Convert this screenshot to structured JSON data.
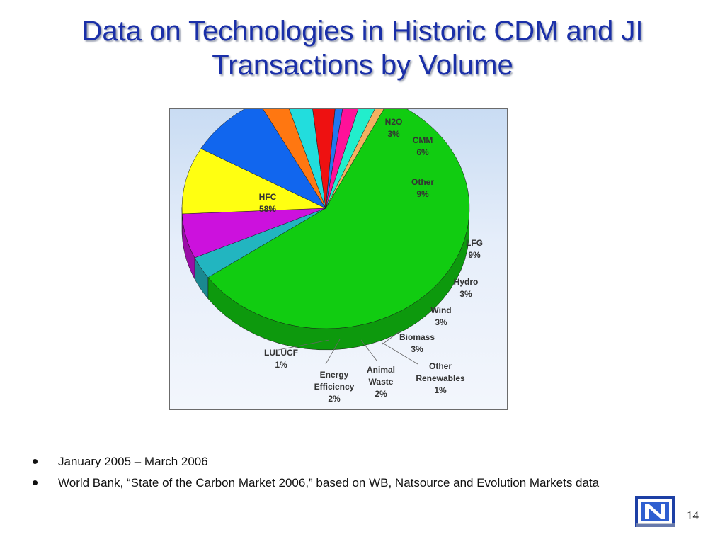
{
  "slide": {
    "title_line1": "Data on Technologies in Historic CDM and JI",
    "title_line2": "Transactions by Volume",
    "bullets": [
      "January 2005 – March 2006",
      "World Bank, “State of the Carbon Market 2006,” based on WB, Natsource and Evolution Markets data"
    ],
    "page_number": "14"
  },
  "chart_data": {
    "type": "pie",
    "title": "",
    "slices": [
      {
        "label": "HFC",
        "value": 58,
        "value_label": "58%",
        "color": "#11cc11"
      },
      {
        "label": "N2O",
        "value": 3,
        "value_label": "3%",
        "color": "#22b5c0"
      },
      {
        "label": "CMM",
        "value": 6,
        "value_label": "6%",
        "color": "#cc11dd"
      },
      {
        "label": "Other",
        "value": 9,
        "value_label": "9%",
        "color": "#ffff11"
      },
      {
        "label": "LFG",
        "value": 9,
        "value_label": "9%",
        "color": "#1166ee"
      },
      {
        "label": "Hydro",
        "value": 3,
        "value_label": "3%",
        "color": "#ff7711"
      },
      {
        "label": "Wind",
        "value": 3,
        "value_label": "3%",
        "color": "#22dddd"
      },
      {
        "label": "Biomass",
        "value": 3,
        "value_label": "3%",
        "color": "#ee1111"
      },
      {
        "label": "Other Renewables",
        "value": 1,
        "value_label": "1%",
        "color": "#2277ee"
      },
      {
        "label": "Animal Waste",
        "value": 2,
        "value_label": "2%",
        "color": "#ff1199"
      },
      {
        "label": "Energy Efficiency",
        "value": 2,
        "value_label": "2%",
        "color": "#22eecc"
      },
      {
        "label": "LULUCF",
        "value": 1,
        "value_label": "1%",
        "color": "#f4b060"
      }
    ],
    "legend": "none",
    "style": "3d-pie"
  }
}
